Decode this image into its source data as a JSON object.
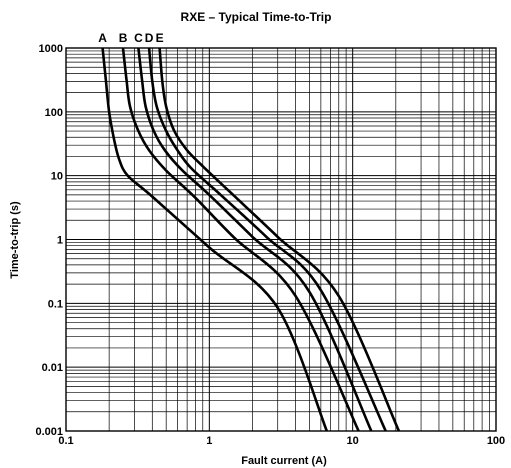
{
  "chart_data": {
    "type": "line",
    "title": "RXE – Typical Time-to-Trip",
    "xlabel": "Fault current (A)",
    "ylabel": "Time-to-trip (s)",
    "x_scale": "log",
    "y_scale": "log",
    "xlim": [
      0.1,
      100
    ],
    "ylim": [
      0.001,
      1000
    ],
    "x_ticks": [
      "0.1",
      "1",
      "10",
      "100"
    ],
    "y_ticks": [
      "0.001",
      "0.01",
      "0.1",
      "1",
      "10",
      "100",
      "1000"
    ],
    "grid": true,
    "series": [
      {
        "name": "A",
        "points": [
          [
            0.18,
            1000
          ],
          [
            0.19,
            300
          ],
          [
            0.2,
            100
          ],
          [
            0.215,
            40
          ],
          [
            0.235,
            18
          ],
          [
            0.27,
            10
          ],
          [
            0.4,
            4.7
          ],
          [
            1,
            0.75
          ],
          [
            3,
            0.085
          ],
          [
            6.6,
            0.001
          ]
        ]
      },
      {
        "name": "B",
        "points": [
          [
            0.25,
            1000
          ],
          [
            0.265,
            300
          ],
          [
            0.28,
            120
          ],
          [
            0.32,
            50
          ],
          [
            0.38,
            25
          ],
          [
            0.5,
            12
          ],
          [
            0.8,
            4.5
          ],
          [
            1.5,
            1.05
          ],
          [
            4,
            0.13
          ],
          [
            11,
            0.001
          ]
        ]
      },
      {
        "name": "C",
        "points": [
          [
            0.32,
            1000
          ],
          [
            0.34,
            300
          ],
          [
            0.36,
            120
          ],
          [
            0.41,
            50
          ],
          [
            0.49,
            25
          ],
          [
            0.65,
            12
          ],
          [
            1,
            5
          ],
          [
            2,
            1.1
          ],
          [
            5,
            0.15
          ],
          [
            13.5,
            0.001
          ]
        ]
      },
      {
        "name": "D",
        "points": [
          [
            0.38,
            1000
          ],
          [
            0.4,
            300
          ],
          [
            0.43,
            120
          ],
          [
            0.5,
            50
          ],
          [
            0.6,
            25
          ],
          [
            0.75,
            13
          ],
          [
            1.2,
            5
          ],
          [
            2.5,
            1.1
          ],
          [
            6,
            0.16
          ],
          [
            17,
            0.001
          ]
        ]
      },
      {
        "name": "E",
        "points": [
          [
            0.45,
            1000
          ],
          [
            0.47,
            300
          ],
          [
            0.5,
            120
          ],
          [
            0.57,
            50
          ],
          [
            0.7,
            25
          ],
          [
            0.9,
            14
          ],
          [
            1.4,
            5.5
          ],
          [
            3,
            1.1
          ],
          [
            8,
            0.13
          ],
          [
            21,
            0.001
          ]
        ]
      }
    ]
  }
}
